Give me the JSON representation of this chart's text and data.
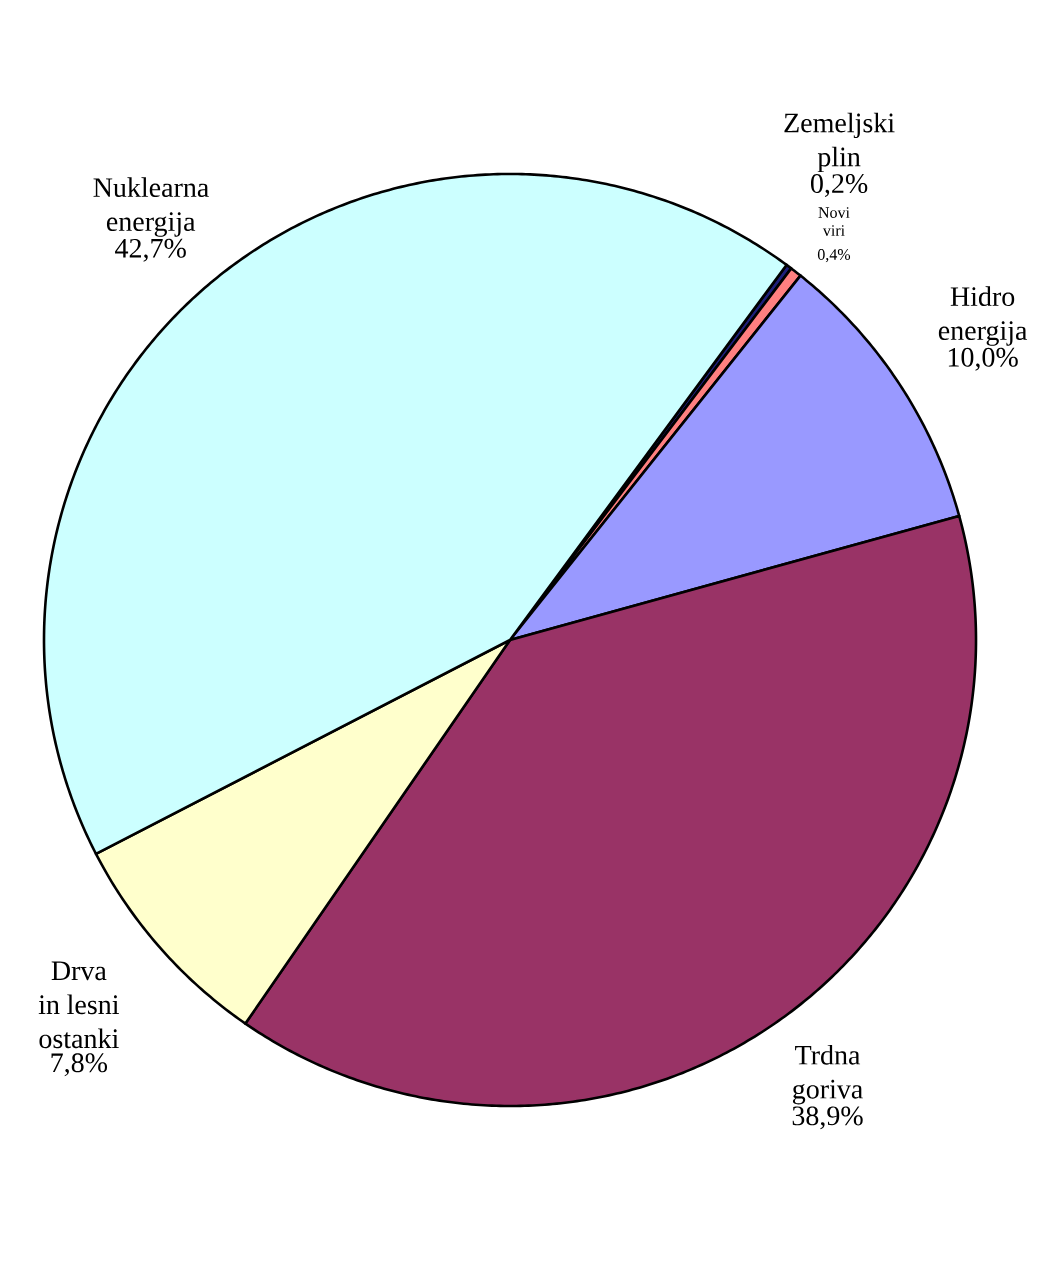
{
  "chart_data": {
    "type": "pie",
    "categories": [
      "Zemeljski plin",
      "Novi viri",
      "Hidro energija",
      "Trdna goriva",
      "Drva in lesni ostanki",
      "Nuklearna energija"
    ],
    "values": [
      0.2,
      0.4,
      10.0,
      38.9,
      7.8,
      42.7
    ],
    "value_labels": [
      "0,2%",
      "0,4%",
      "10,0%",
      "38,9%",
      "7,8%",
      "42,7%"
    ],
    "colors": [
      "#1f1f7a",
      "#ff8080",
      "#9999ff",
      "#993366",
      "#ffffcc",
      "#ccffff"
    ]
  }
}
